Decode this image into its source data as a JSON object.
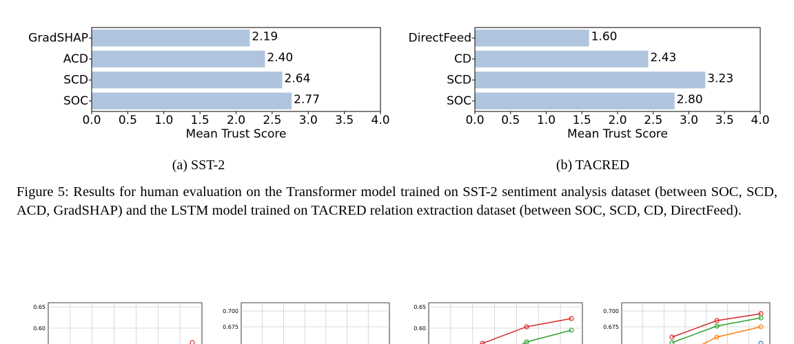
{
  "chart_data": [
    {
      "type": "bar",
      "orientation": "horizontal",
      "categories": [
        "GradSHAP",
        "ACD",
        "SCD",
        "SOC"
      ],
      "values": [
        2.19,
        2.4,
        2.64,
        2.77
      ],
      "value_labels": [
        "2.19",
        "2.40",
        "2.64",
        "2.77"
      ],
      "xlabel": "Mean Trust Score",
      "xlim": [
        0.0,
        4.0
      ],
      "xticks": [
        "0.0",
        "0.5",
        "1.0",
        "1.5",
        "2.0",
        "2.5",
        "3.0",
        "3.5",
        "4.0"
      ],
      "bar_color": "#b0c4de",
      "grid": false
    },
    {
      "type": "bar",
      "orientation": "horizontal",
      "categories": [
        "DirectFeed",
        "CD",
        "SCD",
        "SOC"
      ],
      "values": [
        1.6,
        2.43,
        3.23,
        2.8
      ],
      "value_labels": [
        "1.60",
        "2.43",
        "3.23",
        "2.80"
      ],
      "xlabel": "Mean Trust Score",
      "xlim": [
        0.0,
        4.0
      ],
      "xticks": [
        "0.0",
        "0.5",
        "1.0",
        "1.5",
        "2.0",
        "2.5",
        "3.0",
        "3.5",
        "4.0"
      ],
      "bar_color": "#b0c4de",
      "grid": false
    }
  ],
  "subcaptions": {
    "a": "(a) SST-2",
    "b": "(b) TACRED"
  },
  "figure_caption": "Figure 5: Results for human evaluation on the Transformer model trained on SST-2 sentiment analysis dataset (between SOC, SCD, ACD, GradSHAP) and the LSTM model trained on TACRED relation extraction dataset (between SOC, SCD, CD, DirectFeed).",
  "partial_plots": [
    {
      "yticks": [
        "0.65",
        "0.60"
      ]
    },
    {
      "yticks": [
        "0.700",
        "0.675"
      ]
    },
    {
      "yticks": [
        "0.65",
        "0.60"
      ]
    },
    {
      "yticks": [
        "0.700",
        "0.675"
      ]
    }
  ],
  "colors": {
    "red": "#d62728",
    "green": "#2ca02c",
    "orange": "#ff7f0e",
    "blue": "#1f77b4"
  }
}
